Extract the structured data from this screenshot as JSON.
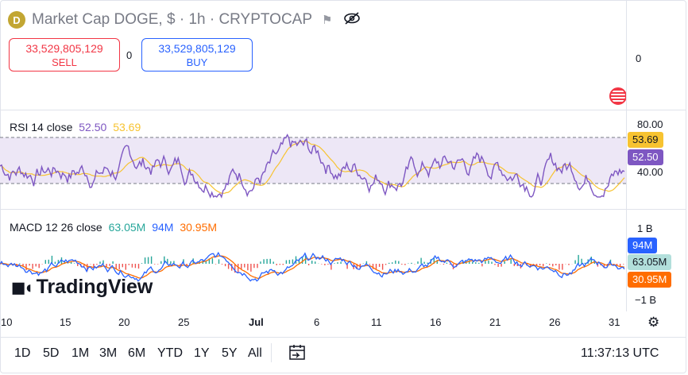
{
  "header": {
    "logo_letter": "D",
    "title": "Market Cap DOGE, $ · 1h · CRYPTOCAP",
    "flag_icon": "flag-icon",
    "eye_icon": "eye-off-icon"
  },
  "trade": {
    "sell_price": "33,529,805,129",
    "sell_label": "SELL",
    "spread": "0",
    "buy_price": "33,529,805,129",
    "buy_label": "BUY"
  },
  "price_axis": {
    "zero": "0"
  },
  "rsi": {
    "label": "RSI 14 close",
    "value1": "52.50",
    "value2": "53.69",
    "axis_top": "80.00",
    "axis_bottom": "40.00",
    "badge_ma": "53.69",
    "badge_rsi": "52.50",
    "colors": {
      "rsi": "#7e57c2",
      "ma": "#f7c331",
      "band": "#ede7f6"
    }
  },
  "macd": {
    "label": "MACD 12 26 close",
    "hist": "63.05M",
    "macd": "94M",
    "signal": "30.95M",
    "axis_top": "1 B",
    "axis_bottom": "−1 B",
    "badge_macd": "94M",
    "badge_hist": "63.05M",
    "badge_signal": "30.95M",
    "colors": {
      "macd": "#2962ff",
      "signal": "#ff6d00",
      "hist_up": "#26a69a",
      "hist_down": "#ef5350"
    }
  },
  "watermark": "TradingView",
  "x_axis": [
    "10",
    "15",
    "20",
    "25",
    "Jul",
    "6",
    "11",
    "16",
    "21",
    "26",
    "31"
  ],
  "toolbar": {
    "ranges": [
      "1D",
      "5D",
      "1M",
      "3M",
      "6M",
      "YTD",
      "1Y",
      "5Y",
      "All"
    ],
    "calendar_icon": "calendar-goto-icon",
    "clock": "11:37:13 UTC"
  }
}
